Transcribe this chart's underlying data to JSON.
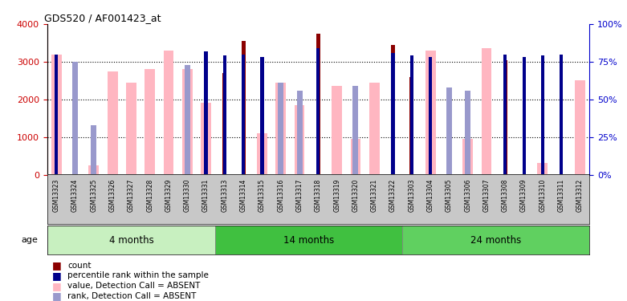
{
  "title": "GDS520 / AF001423_at",
  "samples": [
    "GSM13323",
    "GSM13324",
    "GSM13325",
    "GSM13326",
    "GSM13327",
    "GSM13328",
    "GSM13329",
    "GSM13330",
    "GSM13331",
    "GSM13313",
    "GSM13314",
    "GSM13315",
    "GSM13316",
    "GSM13317",
    "GSM13318",
    "GSM13319",
    "GSM13320",
    "GSM13321",
    "GSM13322",
    "GSM13303",
    "GSM13304",
    "GSM13305",
    "GSM13306",
    "GSM13307",
    "GSM13308",
    "GSM13309",
    "GSM13310",
    "GSM13311",
    "GSM13312"
  ],
  "groups": [
    {
      "label": "4 months",
      "start": 0,
      "end": 9,
      "color": "#c8f0c0"
    },
    {
      "label": "14 months",
      "start": 9,
      "end": 19,
      "color": "#50c850"
    },
    {
      "label": "24 months",
      "start": 19,
      "end": 29,
      "color": "#50d050"
    }
  ],
  "count_values": [
    null,
    null,
    null,
    null,
    null,
    null,
    null,
    null,
    null,
    2700,
    3550,
    null,
    null,
    null,
    3750,
    null,
    null,
    null,
    3450,
    2600,
    null,
    null,
    null,
    null,
    3050,
    null,
    null,
    null,
    null
  ],
  "rank_pct": [
    80,
    null,
    null,
    null,
    null,
    null,
    null,
    null,
    82,
    79,
    80,
    78,
    null,
    null,
    84,
    null,
    null,
    null,
    81,
    79,
    78,
    null,
    null,
    null,
    80,
    78,
    79,
    80,
    null
  ],
  "value_absent": [
    3200,
    null,
    250,
    2750,
    2450,
    2800,
    3300,
    2800,
    1900,
    null,
    null,
    1100,
    2450,
    1850,
    null,
    2350,
    950,
    2450,
    null,
    null,
    3300,
    null,
    950,
    3350,
    null,
    null,
    300,
    null,
    2500
  ],
  "rank_absent_pct": [
    null,
    75,
    33,
    null,
    null,
    null,
    null,
    73,
    null,
    null,
    null,
    null,
    61,
    56,
    null,
    null,
    59,
    null,
    null,
    null,
    null,
    58,
    56,
    null,
    null,
    null,
    null,
    null,
    null
  ],
  "ylim": [
    0,
    4000
  ],
  "y2lim": [
    0,
    100
  ],
  "yticks": [
    0,
    1000,
    2000,
    3000,
    4000
  ],
  "y2ticks": [
    0,
    25,
    50,
    75,
    100
  ],
  "count_color": "#8B0000",
  "rank_color": "#00008B",
  "value_absent_color": "#FFB6C1",
  "rank_absent_color": "#9999CC",
  "bg_color": "#FFFFFF",
  "ylabel_left_color": "#CC0000",
  "ylabel_right_color": "#0000CC",
  "legend_items": [
    [
      "#8B0000",
      "count"
    ],
    [
      "#00008B",
      "percentile rank within the sample"
    ],
    [
      "#FFB6C1",
      "value, Detection Call = ABSENT"
    ],
    [
      "#9999CC",
      "rank, Detection Call = ABSENT"
    ]
  ]
}
